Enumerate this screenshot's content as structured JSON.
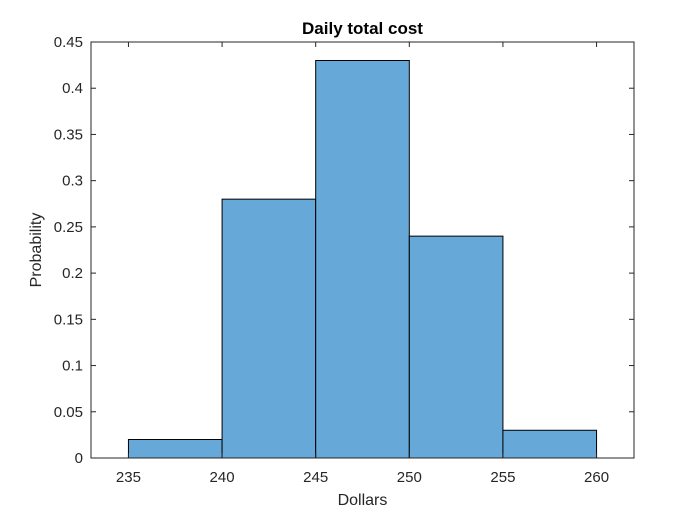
{
  "chart_data": {
    "type": "bar",
    "histogram": true,
    "title": "Daily total cost",
    "xlabel": "Dollars",
    "ylabel": "Probability",
    "bin_edges": [
      235,
      240,
      245,
      250,
      255,
      260
    ],
    "values": [
      0.02,
      0.28,
      0.43,
      0.24,
      0.03
    ],
    "xlim": [
      233,
      262
    ],
    "ylim": [
      0,
      0.45
    ],
    "xticks": [
      235,
      240,
      245,
      250,
      255,
      260
    ],
    "xtick_labels": [
      "235",
      "240",
      "245",
      "250",
      "255",
      "260"
    ],
    "yticks": [
      0,
      0.05,
      0.1,
      0.15,
      0.2,
      0.25,
      0.3,
      0.35,
      0.4,
      0.45
    ],
    "ytick_labels": [
      "0",
      "0.05",
      "0.1",
      "0.15",
      "0.2",
      "0.25",
      "0.3",
      "0.35",
      "0.4",
      "0.45"
    ],
    "grid": false,
    "bar_color": "#66A9D8",
    "edge_color": "#000000",
    "axis_color": "#262626"
  }
}
